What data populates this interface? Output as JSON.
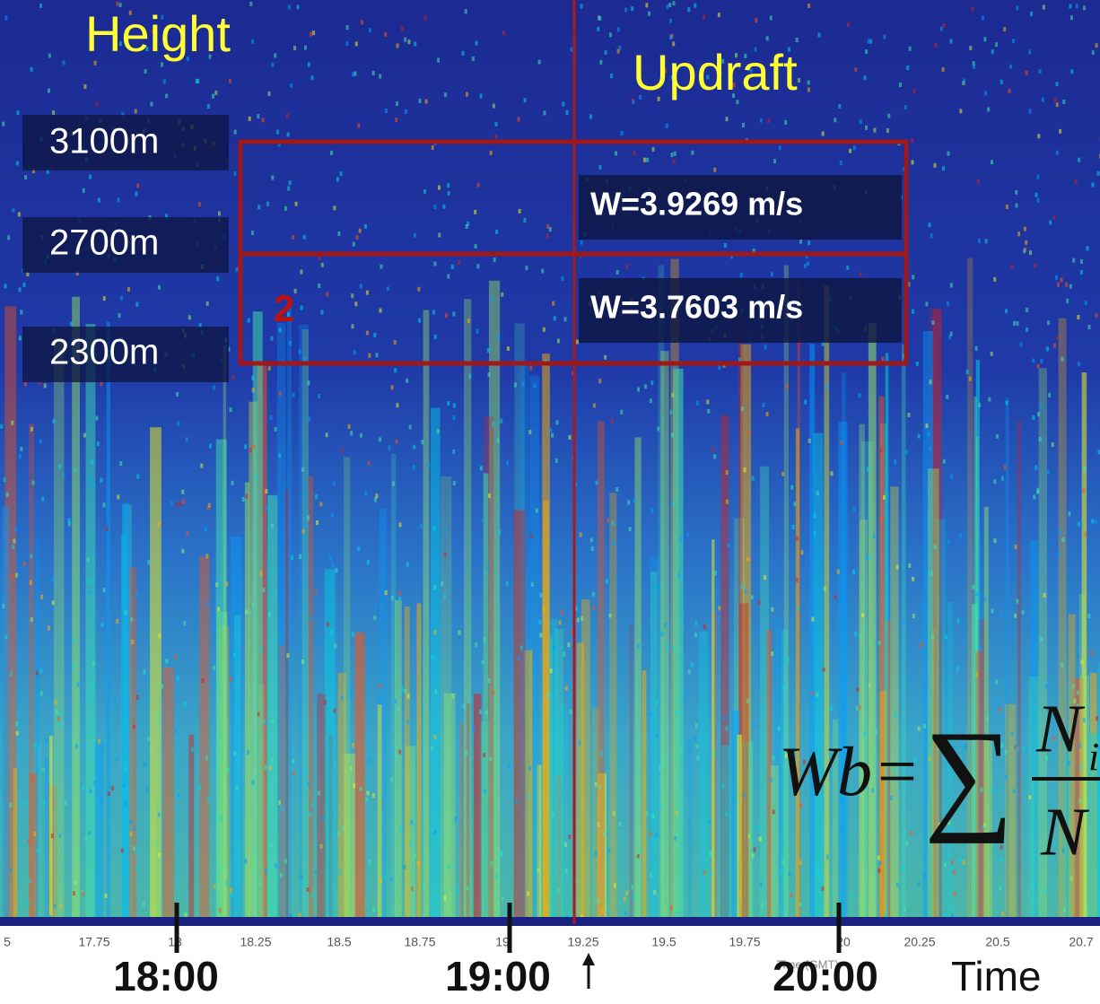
{
  "labels": {
    "height": "Height",
    "updraft": "Updraft"
  },
  "heights": [
    "3100m",
    "2700m",
    "2300m"
  ],
  "updrafts": [
    "W=3.9269 m/s",
    "W=3.7603 m/s"
  ],
  "box_number": "2",
  "axis_ticks": [
    "5",
    "17.75",
    "18",
    "18.25",
    "18.5",
    "18.75",
    "19",
    "19.25",
    "19.5",
    "19.75",
    "20",
    "20.25",
    "20.5",
    "20.7"
  ],
  "axis_title": "Time (GMT)",
  "times": [
    "18:00",
    "19:00",
    "20:00"
  ],
  "time_label": "Time",
  "formula": {
    "lhs": "Wb",
    "eq": "=",
    "sum": "∑",
    "num": "N",
    "sub": "i",
    "den": "N"
  }
}
